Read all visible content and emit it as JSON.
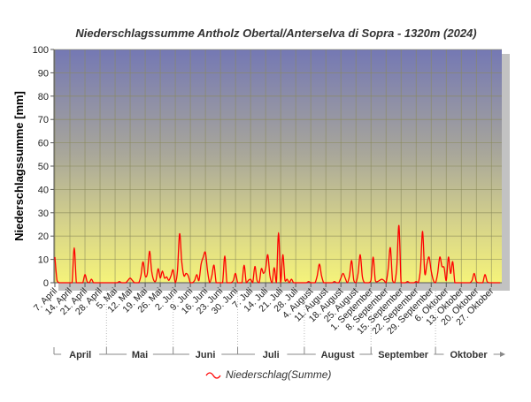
{
  "chart_data": {
    "type": "line",
    "title": "Niederschlagssumme Antholz Obertal/Anterselva di Sopra - 1320m (2024)",
    "ylabel": "Niederschlagssumme [mm]",
    "xlabel": "",
    "ylim": [
      0,
      100
    ],
    "yticks": [
      0,
      10,
      20,
      30,
      40,
      50,
      60,
      70,
      80,
      90,
      100
    ],
    "grid": true,
    "x_start": "7. April",
    "x_step": "1 day",
    "xtick_labels": [
      "7. April",
      "14. April",
      "21. April",
      "28. April",
      "5. Mai",
      "12. Mai",
      "19. Mai",
      "26. Mai",
      "2. Juni",
      "9. Juni",
      "16. Juni",
      "23. Juni",
      "30. Juni",
      "7. Juli",
      "14. Juli",
      "21. Juli",
      "28. Juli",
      "4. August",
      "11. August",
      "18. August",
      "25. August",
      "1. September",
      "8. September",
      "15. September",
      "22. September",
      "29. September",
      "6. Oktober",
      "13. Oktober",
      "20. Oktober",
      "27. Oktober"
    ],
    "months": [
      {
        "label": "April",
        "start_day": -6,
        "end_day": 24
      },
      {
        "label": "Mai",
        "start_day": 24,
        "end_day": 55
      },
      {
        "label": "Juni",
        "start_day": 55,
        "end_day": 85
      },
      {
        "label": "Juli",
        "start_day": 85,
        "end_day": 116
      },
      {
        "label": "August",
        "start_day": 116,
        "end_day": 147
      },
      {
        "label": "September",
        "start_day": 147,
        "end_day": 177
      },
      {
        "label": "Oktober",
        "start_day": 177,
        "end_day": 208
      }
    ],
    "legend": {
      "label": "Niederschlag(Summe)",
      "position": "bottom"
    },
    "series": [
      {
        "name": "Niederschlag(Summe)",
        "color": "#ff0000",
        "values": [
          11,
          1,
          0,
          0,
          0,
          0,
          0,
          0,
          0,
          15,
          0,
          0,
          0,
          0,
          3.5,
          0.5,
          0,
          1.5,
          0,
          0,
          0,
          0,
          0,
          0,
          0,
          0,
          0,
          0,
          0,
          0,
          0.5,
          0,
          0,
          0,
          1,
          2,
          1,
          0,
          0,
          0,
          3,
          9,
          3,
          4,
          13.5,
          5,
          1,
          1,
          6,
          2,
          5,
          2,
          2.5,
          1,
          3,
          5.5,
          0,
          5,
          21,
          9,
          3,
          4,
          3,
          0,
          0,
          1,
          3.5,
          1,
          8,
          11,
          13,
          5,
          0,
          3,
          7.5,
          0,
          0,
          0,
          0,
          11.5,
          0,
          0,
          0,
          1,
          4,
          0,
          0,
          0,
          7.5,
          0,
          1,
          1.5,
          0,
          7,
          1,
          0,
          6,
          4,
          6,
          12,
          3,
          0,
          6.5,
          0,
          21.5,
          0,
          12,
          1,
          1.5,
          0,
          1.5,
          0,
          0,
          0,
          0,
          0,
          0,
          0,
          0.5,
          0,
          0,
          0,
          3,
          8,
          3,
          0,
          0,
          0,
          0,
          0,
          0.5,
          0,
          0,
          2,
          4,
          2,
          0,
          3,
          9.5,
          1,
          0,
          4,
          12,
          2.5,
          0,
          0,
          0,
          1,
          11,
          1,
          0.5,
          1,
          1.5,
          1,
          0,
          6,
          15,
          1,
          0,
          7,
          24.5,
          0,
          0,
          0,
          0.5,
          0,
          0,
          0,
          0.5,
          0,
          6,
          22,
          4,
          8,
          11,
          5,
          1,
          0,
          4,
          11,
          7,
          6.5,
          1,
          11,
          4,
          9,
          0,
          0,
          0,
          0,
          0,
          0,
          0,
          0,
          1,
          4,
          0.5,
          0,
          0,
          0,
          3.5,
          0.5,
          0,
          0,
          0,
          0,
          0,
          0
        ]
      }
    ]
  }
}
